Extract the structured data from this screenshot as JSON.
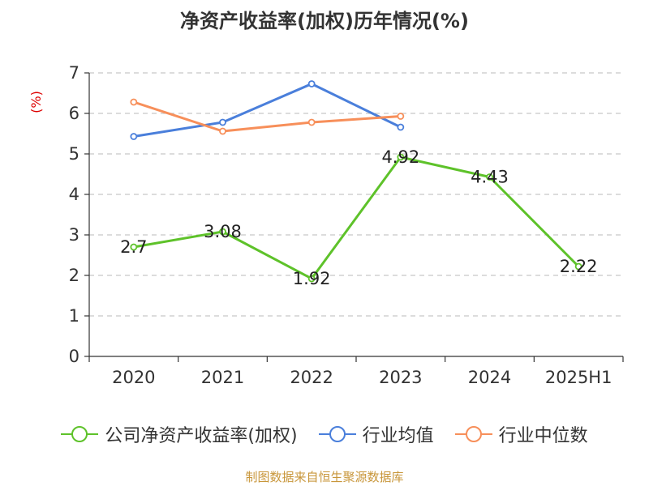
{
  "chart_data": {
    "type": "line",
    "title": "净资产收益率(加权)历年情况(%)",
    "ylabel": "(%)",
    "categories": [
      "2020",
      "2021",
      "2022",
      "2023",
      "2024",
      "2025H1"
    ],
    "ylim": [
      0,
      7
    ],
    "yticks": [
      0,
      1,
      2,
      3,
      4,
      5,
      6,
      7
    ],
    "grid": true,
    "legend_position": "bottom",
    "series": [
      {
        "name": "公司净资产收益率(加权)",
        "color": "#5ec22a",
        "values": [
          2.7,
          3.08,
          1.92,
          4.92,
          4.43,
          2.22
        ],
        "labels": [
          "2.7",
          "3.08",
          "1.92",
          "4.92",
          "4.43",
          "2.22"
        ]
      },
      {
        "name": "行业均值",
        "color": "#4a7fdb",
        "values": [
          5.43,
          5.78,
          6.73,
          5.66,
          null,
          null
        ]
      },
      {
        "name": "行业中位数",
        "color": "#f78f5a",
        "values": [
          6.28,
          5.56,
          5.78,
          5.93,
          null,
          null
        ]
      }
    ]
  },
  "source_note": "制图数据来自恒生聚源数据库"
}
